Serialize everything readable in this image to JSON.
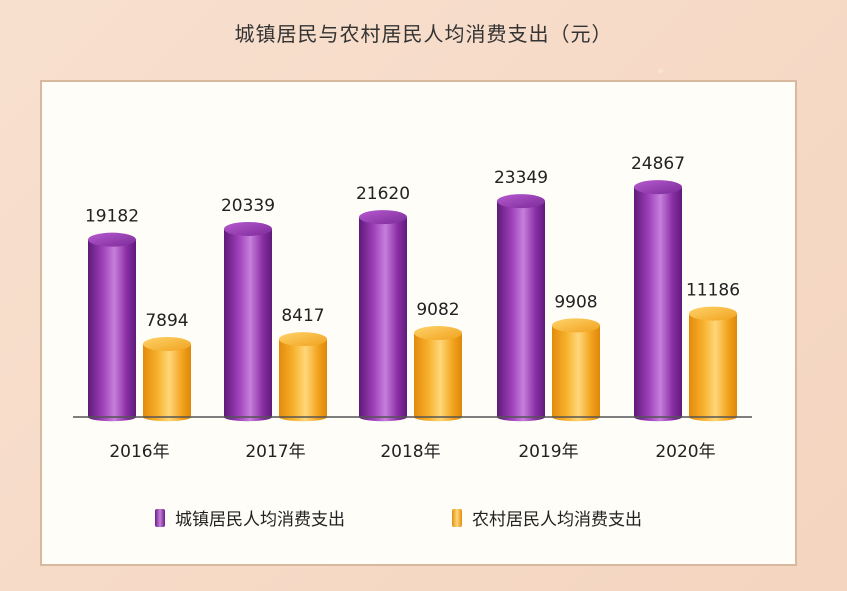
{
  "title": "城镇居民与农村居民人均消费支出（元）",
  "colors": {
    "urban": "#9d3fb8",
    "urban_dark": "#6a1f86",
    "urban_light": "#c67fdb",
    "rural": "#f7b12c",
    "rural_dark": "#e28f10",
    "rural_light": "#ffd77a"
  },
  "chart_data": {
    "type": "bar",
    "title": "城镇居民与农村居民人均消费支出（元）",
    "categories": [
      "2016年",
      "2017年",
      "2018年",
      "2019年",
      "2020年"
    ],
    "series": [
      {
        "name": "城镇居民人均消费支出",
        "values": [
          19182,
          20339,
          21620,
          23349,
          24867
        ]
      },
      {
        "name": "农村居民人均消费支出",
        "values": [
          7894,
          8417,
          9082,
          9908,
          11186
        ]
      }
    ],
    "xlabel": "",
    "ylabel": "",
    "ylim": [
      0,
      30000
    ],
    "grid": false,
    "legend_position": "bottom"
  }
}
